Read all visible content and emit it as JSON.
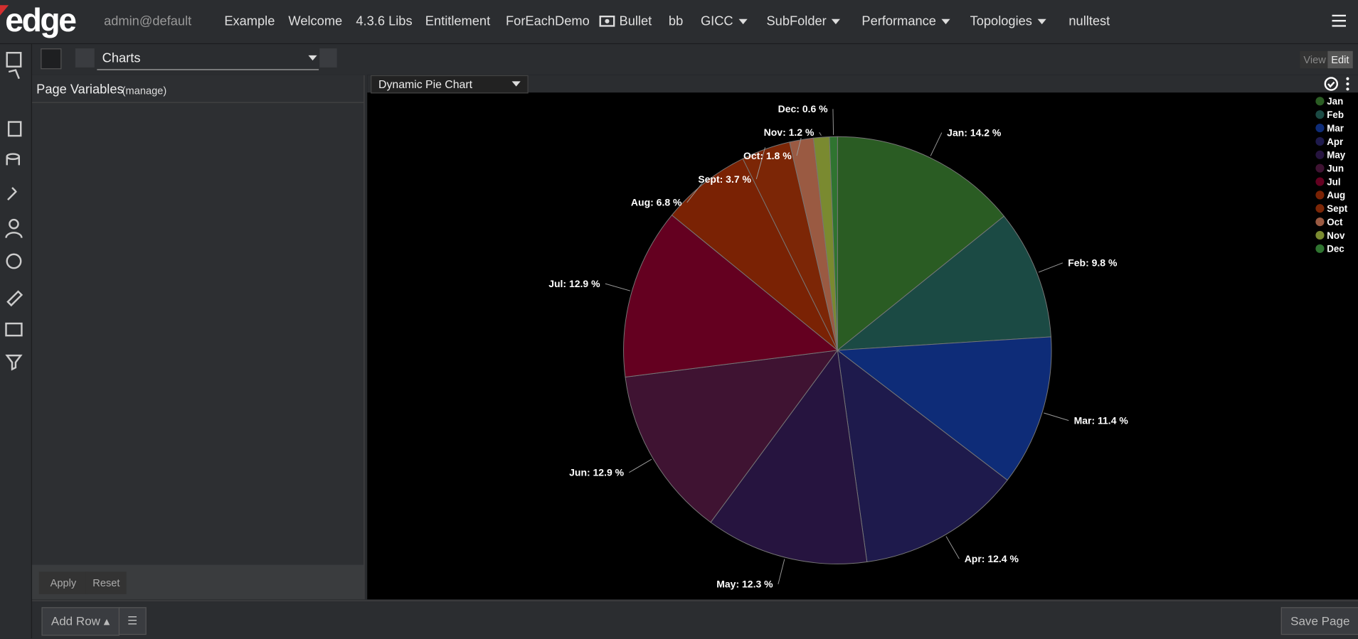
{
  "nav": {
    "logo": "edge",
    "user": "admin@default",
    "items": [
      "Example",
      "Welcome",
      "4.3.6 Libs",
      "Entitlement",
      "ForEachDemo",
      "Bullet",
      "bb",
      "GICC",
      "SubFolder",
      "Performance",
      "Topologies",
      "nulltest"
    ]
  },
  "toolbar": {
    "page": "Charts",
    "view": "View",
    "edit": "Edit"
  },
  "panel": {
    "title": "Page Variables",
    "manage": "(manage)",
    "apply": "Apply",
    "reset": "Reset"
  },
  "footer": {
    "add_row": "Add Row",
    "save": "Save Page"
  },
  "chart_data": {
    "type": "pie",
    "title": "Dynamic Pie Chart",
    "categories": [
      "Jan",
      "Feb",
      "Mar",
      "Apr",
      "May",
      "Jun",
      "Jul",
      "Aug",
      "Sept",
      "Oct",
      "Nov",
      "Dec"
    ],
    "values": [
      14.2,
      9.8,
      11.4,
      12.4,
      12.3,
      12.9,
      12.9,
      6.8,
      3.7,
      1.8,
      1.2,
      0.6
    ],
    "value_labels": [
      "Jan: 14.2 %",
      "Feb: 9.8 %",
      "Mar: 11.4 %",
      "Apr: 12.4 %",
      "May: 12.3 %",
      "Jun: 12.9 %",
      "Jul: 12.9 %",
      "Aug: 6.8 %",
      "Sept: 3.7 %",
      "Oct: 1.8 %",
      "Nov: 1.2 %",
      "Dec: 0.6 %"
    ],
    "colors": [
      "#2a5c23",
      "#1b4a44",
      "#0e2c78",
      "#1e1a4c",
      "#26143f",
      "#3f1332",
      "#640020",
      "#7a2204",
      "#7c2606",
      "#9a5a42",
      "#7a8a30",
      "#2f7430"
    ],
    "legend": "top-right"
  }
}
